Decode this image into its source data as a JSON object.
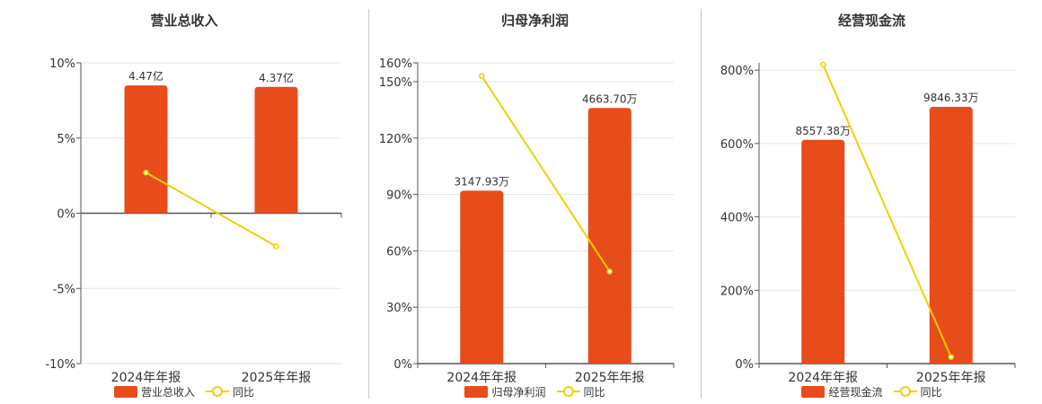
{
  "colors": {
    "bar": "#e84c1b",
    "line": "#f0d000",
    "axis": "#555555",
    "grid": "#e6e6e6",
    "text": "#333333"
  },
  "chart_data": [
    {
      "type": "bar",
      "title": "营业总收入",
      "categories": [
        "2024年年报",
        "2025年年报"
      ],
      "series": [
        {
          "name": "营业总收入",
          "kind": "bar",
          "values": [
            8.5,
            8.4
          ],
          "labels": [
            "4.47亿",
            "4.37亿"
          ]
        },
        {
          "name": "同比",
          "kind": "line",
          "values": [
            2.7,
            -2.2
          ]
        }
      ],
      "yticks": [
        "10%",
        "5%",
        "0%",
        "-5%",
        "-10%"
      ],
      "ylim": [
        -10,
        10
      ],
      "grid": true,
      "legend": "bottom"
    },
    {
      "type": "bar",
      "title": "归母净利润",
      "categories": [
        "2024年年报",
        "2025年年报"
      ],
      "series": [
        {
          "name": "归母净利润",
          "kind": "bar",
          "values": [
            92,
            136
          ],
          "labels": [
            "3147.93万",
            "4663.70万"
          ]
        },
        {
          "name": "同比",
          "kind": "line",
          "values": [
            153,
            49
          ]
        }
      ],
      "yticks": [
        "160%",
        "150%",
        "120%",
        "90%",
        "60%",
        "30%",
        "0%"
      ],
      "ytick_values": [
        160,
        150,
        120,
        90,
        60,
        30,
        0
      ],
      "ylim": [
        0,
        160
      ],
      "grid": true,
      "legend": "bottom"
    },
    {
      "type": "bar",
      "title": "经营现金流",
      "categories": [
        "2024年年报",
        "2025年年报"
      ],
      "series": [
        {
          "name": "经营现金流",
          "kind": "bar",
          "values": [
            610,
            700
          ],
          "labels": [
            "8557.38万",
            "9846.33万"
          ]
        },
        {
          "name": "同比",
          "kind": "line",
          "values": [
            815,
            18
          ]
        }
      ],
      "yticks": [
        "800%",
        "600%",
        "400%",
        "200%",
        "0%"
      ],
      "ytick_values": [
        800,
        600,
        400,
        200,
        0
      ],
      "ylim": [
        0,
        820
      ],
      "grid": true,
      "legend": "bottom"
    }
  ]
}
